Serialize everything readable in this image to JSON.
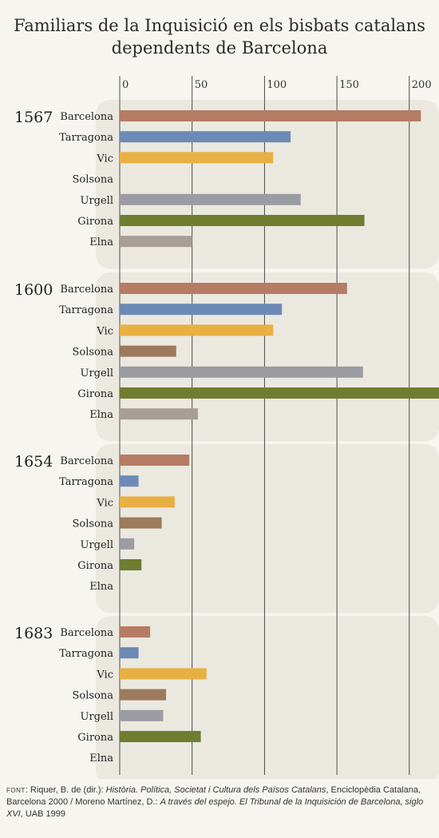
{
  "chart_data": {
    "type": "bar",
    "orientation": "horizontal",
    "title": "Familiars de la Inquisició en els bisbats catalans dependents de Barcelona",
    "title_lines": [
      "Familiars de la Inquisició en els bisbats catalans",
      "dependents de Barcelona"
    ],
    "xlim": [
      0,
      215
    ],
    "xticks": [
      0,
      50,
      100,
      150,
      200
    ],
    "xtick_labels": [
      "0",
      "50",
      "100",
      "150",
      "200"
    ],
    "grid": "vertical",
    "categories": [
      "Barcelona",
      "Tarragona",
      "Vic",
      "Solsona",
      "Urgell",
      "Girona",
      "Elna"
    ],
    "category_colors": {
      "Barcelona": "#b57b63",
      "Tarragona": "#6c8ab5",
      "Vic": "#e8b043",
      "Solsona": "#9c7a5c",
      "Urgell": "#9b9ba2",
      "Girona": "#6f7d31",
      "Elna": "#a89e98"
    },
    "groups": [
      {
        "year": "1567",
        "values": [
          208,
          118,
          106,
          0,
          125,
          169,
          50
        ]
      },
      {
        "year": "1600",
        "values": [
          157,
          112,
          106,
          39,
          168,
          221,
          54
        ]
      },
      {
        "year": "1654",
        "values": [
          48,
          13,
          38,
          29,
          10,
          15,
          0
        ]
      },
      {
        "year": "1683",
        "values": [
          21,
          13,
          60,
          32,
          30,
          56,
          0
        ]
      }
    ]
  },
  "source": {
    "label": "font",
    "plain1": ": Riquer, B. de (dir.): ",
    "italic1": "Història. Política, Societat i Cultura dels Països Catalans",
    "plain2": ", Enciclopèdia Catalana, Barcelona 2000 / Moreno Martínez, D.: ",
    "italic2": "A través del espejo. El Tribunal de la Inquisición de Barcelona, siglo XVI",
    "plain3": ", UAB 1999"
  }
}
